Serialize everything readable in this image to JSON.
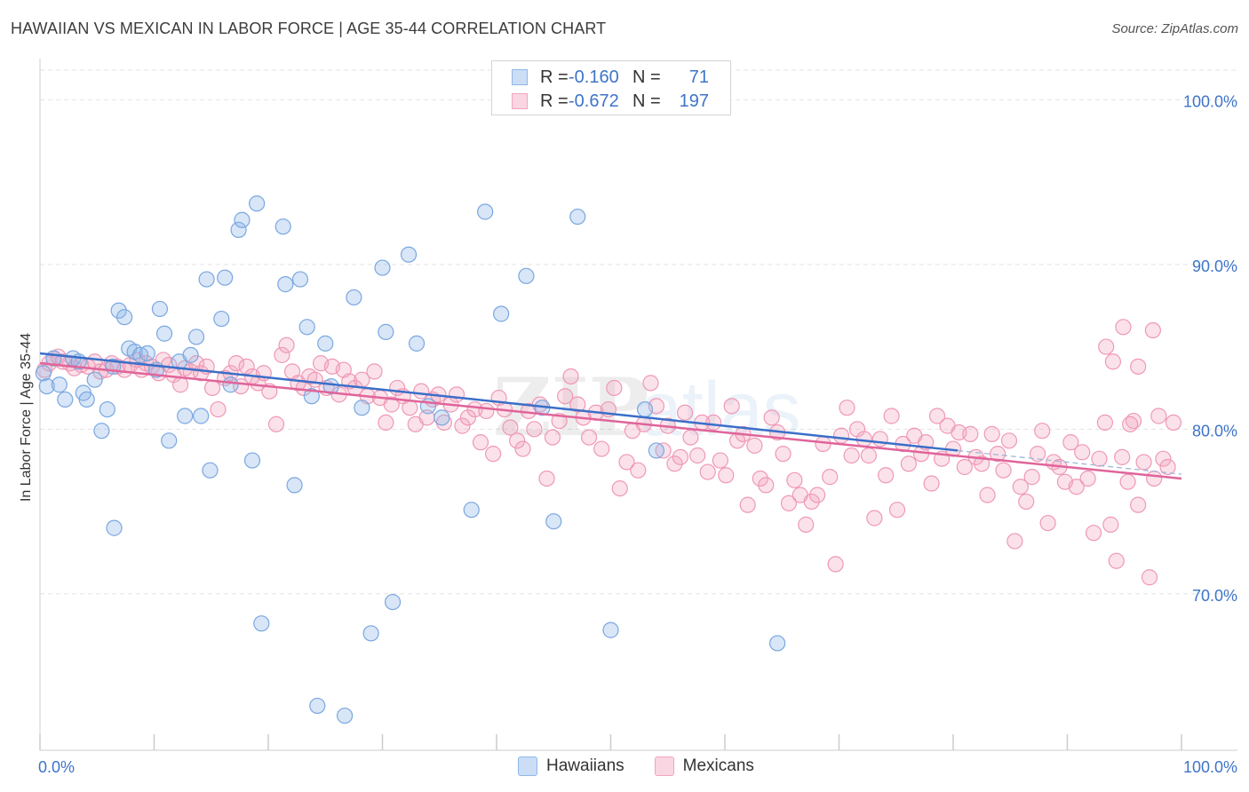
{
  "title": "HAWAIIAN VS MEXICAN IN LABOR FORCE | AGE 35-44 CORRELATION CHART",
  "source": "Source: ZipAtlas.com",
  "legend": {
    "rows": [
      {
        "r_label": "R =",
        "r_value": "-0.160",
        "n_label": "N =",
        "n_value": "71",
        "color": "#8fb6e8"
      },
      {
        "r_label": "R =",
        "r_value": "-0.672",
        "n_label": "N =",
        "n_value": "197",
        "color": "#f2a4bf"
      }
    ]
  },
  "bottom_legend": [
    {
      "label": "Hawaiians",
      "color": "#8fb6e8"
    },
    {
      "label": "Mexicans",
      "color": "#f2a4bf"
    }
  ],
  "colors": {
    "hawaiian": "#8fb6e8",
    "mexican": "#f2a4bf",
    "hawaiian_line": "#3a6fc9",
    "mexican_line": "#e0649a",
    "tick_text": "#3e74c9",
    "grid": "#e3e3e3"
  },
  "chart_data": {
    "type": "scatter",
    "title": "HAWAIIAN VS MEXICAN IN LABOR FORCE | AGE 35-44 CORRELATION CHART",
    "xlabel": "",
    "ylabel": "In Labor Force | Age 35-44",
    "xlim": [
      0,
      100
    ],
    "ylim": [
      60.5,
      102.5
    ],
    "x_tick_labels": [
      "0.0%",
      "100.0%"
    ],
    "y_tick_labels": [
      "70.0%",
      "80.0%",
      "90.0%",
      "100.0%"
    ],
    "y_ticks": [
      70,
      80,
      90,
      100
    ],
    "grid": true,
    "series": [
      {
        "name": "Hawaiians",
        "r": -0.16,
        "n": 71,
        "trend": {
          "x": [
            0,
            80.4
          ],
          "y": [
            84.6,
            78.7
          ]
        },
        "points": [
          [
            0.3,
            83.4
          ],
          [
            0.6,
            82.6
          ],
          [
            1.2,
            84.3
          ],
          [
            1.7,
            82.7
          ],
          [
            2.2,
            81.8
          ],
          [
            2.9,
            84.3
          ],
          [
            3.4,
            84.1
          ],
          [
            3.8,
            82.2
          ],
          [
            4.1,
            81.8
          ],
          [
            4.8,
            83.0
          ],
          [
            5.4,
            79.9
          ],
          [
            5.9,
            81.2
          ],
          [
            6.4,
            83.8
          ],
          [
            6.9,
            87.2
          ],
          [
            7.4,
            86.8
          ],
          [
            7.8,
            84.9
          ],
          [
            8.3,
            84.7
          ],
          [
            8.8,
            84.5
          ],
          [
            9.4,
            84.6
          ],
          [
            10.2,
            83.6
          ],
          [
            10.5,
            87.3
          ],
          [
            10.9,
            85.8
          ],
          [
            11.3,
            79.3
          ],
          [
            12.2,
            84.1
          ],
          [
            12.7,
            80.8
          ],
          [
            13.2,
            84.5
          ],
          [
            13.7,
            85.6
          ],
          [
            14.1,
            80.8
          ],
          [
            14.6,
            89.1
          ],
          [
            14.9,
            77.5
          ],
          [
            15.9,
            86.7
          ],
          [
            16.2,
            89.2
          ],
          [
            16.7,
            82.7
          ],
          [
            17.4,
            92.1
          ],
          [
            17.7,
            92.7
          ],
          [
            18.6,
            78.1
          ],
          [
            19.0,
            93.7
          ],
          [
            19.4,
            68.2
          ],
          [
            21.3,
            92.3
          ],
          [
            21.5,
            88.8
          ],
          [
            22.3,
            76.6
          ],
          [
            22.8,
            89.1
          ],
          [
            23.4,
            86.2
          ],
          [
            23.8,
            82.0
          ],
          [
            24.3,
            63.2
          ],
          [
            25.0,
            85.2
          ],
          [
            25.5,
            82.6
          ],
          [
            26.7,
            62.6
          ],
          [
            27.5,
            88.0
          ],
          [
            28.2,
            81.3
          ],
          [
            29.0,
            67.6
          ],
          [
            30.0,
            89.8
          ],
          [
            30.3,
            85.9
          ],
          [
            30.9,
            69.5
          ],
          [
            32.3,
            90.6
          ],
          [
            33.0,
            85.2
          ],
          [
            34.0,
            81.4
          ],
          [
            35.2,
            80.7
          ],
          [
            37.8,
            75.1
          ],
          [
            39.0,
            93.2
          ],
          [
            40.4,
            87.0
          ],
          [
            42.6,
            89.3
          ],
          [
            44.0,
            81.3
          ],
          [
            45.0,
            74.4
          ],
          [
            47.1,
            92.9
          ],
          [
            48.0,
            100.4
          ],
          [
            50.0,
            67.8
          ],
          [
            53.0,
            81.2
          ],
          [
            54.0,
            78.7
          ],
          [
            64.6,
            67.0
          ],
          [
            6.5,
            74.0
          ]
        ]
      },
      {
        "name": "Mexicans",
        "r": -0.672,
        "n": 197,
        "trend": {
          "x": [
            0,
            100
          ],
          "y": [
            84.0,
            77.0
          ]
        },
        "points": [
          [
            0.4,
            83.6
          ],
          [
            0.8,
            84.0
          ],
          [
            1.2,
            84.3
          ],
          [
            1.6,
            84.4
          ],
          [
            2.0,
            84.1
          ],
          [
            2.6,
            84.0
          ],
          [
            3.0,
            83.7
          ],
          [
            3.6,
            83.9
          ],
          [
            4.2,
            83.8
          ],
          [
            4.8,
            84.1
          ],
          [
            5.3,
            83.5
          ],
          [
            5.8,
            83.6
          ],
          [
            6.3,
            84.0
          ],
          [
            6.8,
            83.8
          ],
          [
            7.4,
            83.6
          ],
          [
            7.9,
            83.9
          ],
          [
            8.5,
            84.2
          ],
          [
            8.9,
            83.6
          ],
          [
            9.3,
            84.0
          ],
          [
            9.8,
            83.8
          ],
          [
            10.4,
            83.4
          ],
          [
            10.8,
            84.2
          ],
          [
            11.3,
            83.9
          ],
          [
            11.7,
            83.3
          ],
          [
            12.3,
            82.7
          ],
          [
            12.7,
            83.7
          ],
          [
            13.2,
            83.5
          ],
          [
            13.7,
            84.0
          ],
          [
            14.1,
            83.4
          ],
          [
            14.6,
            83.8
          ],
          [
            15.1,
            82.5
          ],
          [
            15.6,
            81.2
          ],
          [
            16.2,
            83.1
          ],
          [
            16.7,
            83.4
          ],
          [
            17.2,
            84.0
          ],
          [
            17.6,
            82.6
          ],
          [
            18.1,
            83.8
          ],
          [
            18.6,
            83.2
          ],
          [
            19.1,
            82.8
          ],
          [
            19.6,
            83.4
          ],
          [
            20.1,
            82.3
          ],
          [
            20.7,
            80.3
          ],
          [
            21.2,
            84.5
          ],
          [
            21.6,
            85.1
          ],
          [
            22.1,
            83.5
          ],
          [
            22.6,
            82.8
          ],
          [
            23.1,
            82.5
          ],
          [
            23.6,
            83.2
          ],
          [
            24.1,
            83.0
          ],
          [
            24.6,
            84.0
          ],
          [
            25.1,
            82.5
          ],
          [
            25.6,
            83.8
          ],
          [
            26.2,
            82.1
          ],
          [
            26.6,
            83.6
          ],
          [
            27.1,
            82.9
          ],
          [
            27.6,
            82.5
          ],
          [
            28.2,
            83.0
          ],
          [
            28.7,
            82.0
          ],
          [
            29.3,
            83.5
          ],
          [
            29.8,
            81.9
          ],
          [
            30.3,
            80.4
          ],
          [
            30.8,
            81.5
          ],
          [
            31.3,
            82.5
          ],
          [
            31.8,
            82.0
          ],
          [
            32.4,
            81.3
          ],
          [
            32.9,
            80.3
          ],
          [
            33.4,
            82.3
          ],
          [
            33.9,
            80.7
          ],
          [
            34.4,
            81.8
          ],
          [
            34.9,
            82.1
          ],
          [
            35.4,
            80.4
          ],
          [
            36.0,
            81.5
          ],
          [
            36.5,
            82.1
          ],
          [
            37.0,
            80.2
          ],
          [
            37.5,
            80.7
          ],
          [
            38.1,
            81.2
          ],
          [
            38.6,
            79.2
          ],
          [
            39.1,
            81.1
          ],
          [
            39.7,
            78.5
          ],
          [
            40.2,
            81.9
          ],
          [
            40.7,
            81.2
          ],
          [
            41.2,
            80.1
          ],
          [
            41.8,
            79.3
          ],
          [
            42.3,
            78.8
          ],
          [
            42.8,
            81.1
          ],
          [
            43.3,
            80.0
          ],
          [
            43.8,
            81.5
          ],
          [
            44.4,
            77.0
          ],
          [
            44.9,
            79.5
          ],
          [
            45.5,
            80.5
          ],
          [
            46.0,
            82.0
          ],
          [
            46.5,
            83.2
          ],
          [
            47.1,
            81.5
          ],
          [
            47.6,
            80.7
          ],
          [
            48.1,
            79.5
          ],
          [
            48.7,
            81.0
          ],
          [
            49.2,
            78.8
          ],
          [
            49.8,
            81.2
          ],
          [
            50.3,
            82.5
          ],
          [
            50.8,
            76.4
          ],
          [
            51.4,
            78.0
          ],
          [
            51.9,
            79.9
          ],
          [
            52.4,
            77.5
          ],
          [
            52.9,
            80.3
          ],
          [
            53.5,
            82.8
          ],
          [
            54.0,
            81.4
          ],
          [
            54.6,
            78.7
          ],
          [
            55.0,
            80.2
          ],
          [
            55.6,
            77.9
          ],
          [
            56.1,
            78.3
          ],
          [
            56.5,
            81.0
          ],
          [
            57.0,
            79.5
          ],
          [
            57.6,
            78.4
          ],
          [
            58.0,
            80.4
          ],
          [
            58.5,
            77.4
          ],
          [
            59.0,
            80.4
          ],
          [
            59.6,
            78.1
          ],
          [
            60.1,
            77.2
          ],
          [
            60.6,
            81.4
          ],
          [
            61.1,
            79.3
          ],
          [
            61.6,
            79.7
          ],
          [
            62.0,
            75.4
          ],
          [
            62.6,
            79.0
          ],
          [
            63.1,
            77.0
          ],
          [
            63.6,
            76.6
          ],
          [
            64.1,
            80.7
          ],
          [
            64.6,
            79.8
          ],
          [
            65.1,
            78.5
          ],
          [
            65.6,
            75.5
          ],
          [
            66.1,
            76.9
          ],
          [
            66.6,
            76.0
          ],
          [
            67.1,
            74.2
          ],
          [
            67.6,
            75.6
          ],
          [
            68.1,
            76.0
          ],
          [
            68.6,
            79.1
          ],
          [
            69.2,
            77.1
          ],
          [
            69.7,
            71.8
          ],
          [
            70.2,
            79.6
          ],
          [
            70.7,
            81.3
          ],
          [
            71.1,
            78.4
          ],
          [
            71.6,
            80.0
          ],
          [
            72.2,
            79.4
          ],
          [
            72.6,
            78.4
          ],
          [
            73.1,
            74.6
          ],
          [
            73.6,
            79.4
          ],
          [
            74.1,
            77.2
          ],
          [
            74.6,
            80.8
          ],
          [
            75.1,
            75.1
          ],
          [
            75.6,
            79.1
          ],
          [
            76.1,
            77.9
          ],
          [
            76.6,
            79.6
          ],
          [
            77.2,
            78.5
          ],
          [
            77.6,
            79.2
          ],
          [
            78.1,
            76.7
          ],
          [
            78.6,
            80.8
          ],
          [
            79.0,
            78.2
          ],
          [
            79.5,
            80.2
          ],
          [
            80.0,
            78.8
          ],
          [
            80.5,
            79.8
          ],
          [
            81.0,
            77.7
          ],
          [
            81.5,
            79.7
          ],
          [
            82.0,
            78.3
          ],
          [
            82.5,
            77.9
          ],
          [
            83.0,
            76.0
          ],
          [
            83.4,
            79.7
          ],
          [
            83.9,
            78.5
          ],
          [
            84.4,
            77.5
          ],
          [
            84.9,
            79.3
          ],
          [
            85.4,
            73.2
          ],
          [
            85.9,
            76.5
          ],
          [
            86.4,
            75.6
          ],
          [
            86.9,
            77.1
          ],
          [
            87.4,
            78.5
          ],
          [
            87.8,
            79.9
          ],
          [
            88.3,
            74.3
          ],
          [
            88.8,
            78.0
          ],
          [
            89.3,
            77.7
          ],
          [
            89.8,
            76.8
          ],
          [
            90.3,
            79.2
          ],
          [
            90.8,
            76.5
          ],
          [
            91.3,
            78.6
          ],
          [
            91.8,
            77.0
          ],
          [
            92.3,
            73.7
          ],
          [
            92.8,
            78.2
          ],
          [
            93.3,
            80.4
          ],
          [
            93.8,
            74.2
          ],
          [
            94.3,
            72.0
          ],
          [
            94.8,
            78.3
          ],
          [
            95.3,
            76.8
          ],
          [
            95.8,
            80.5
          ],
          [
            96.2,
            75.4
          ],
          [
            96.7,
            78.0
          ],
          [
            97.2,
            71.0
          ],
          [
            97.6,
            77.0
          ],
          [
            98.0,
            80.8
          ],
          [
            98.4,
            78.2
          ],
          [
            98.8,
            77.7
          ],
          [
            99.3,
            80.4
          ],
          [
            97.5,
            86.0
          ],
          [
            96.2,
            83.8
          ],
          [
            94.9,
            86.2
          ],
          [
            94.0,
            84.1
          ],
          [
            93.4,
            85.0
          ],
          [
            95.5,
            80.3
          ]
        ]
      }
    ]
  }
}
